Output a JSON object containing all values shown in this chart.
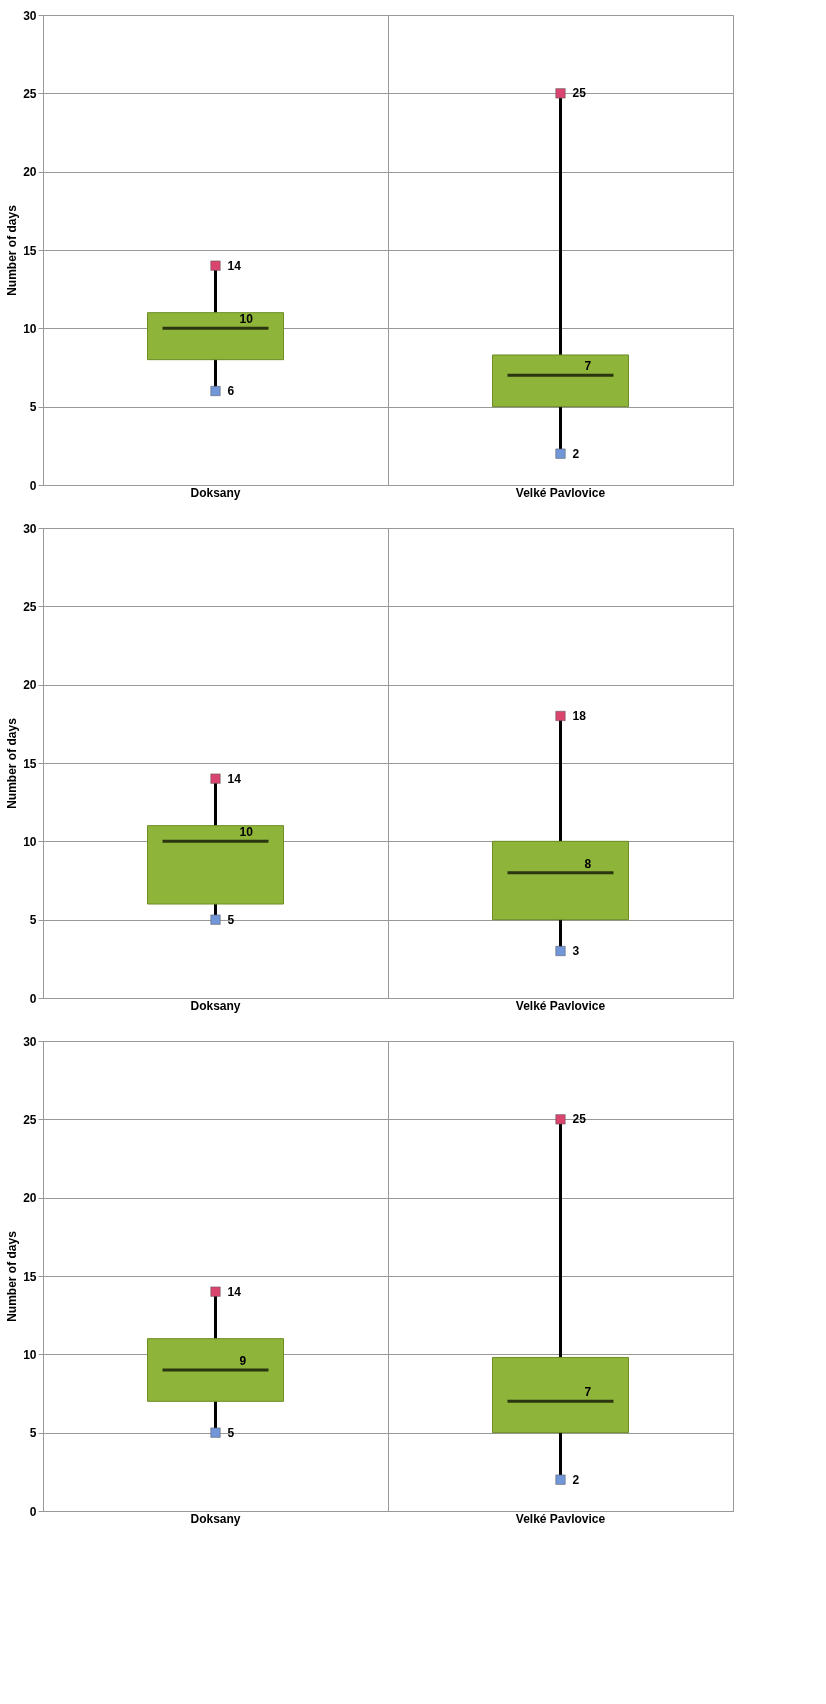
{
  "chart_data": [
    {
      "type": "box",
      "ylabel": "Number of days",
      "categories": [
        "Doksany",
        "Velké Pavlovice"
      ],
      "ylim": [
        0,
        30
      ],
      "yticks": [
        0,
        5,
        10,
        15,
        20,
        25,
        30
      ],
      "grid": true,
      "marker": "square",
      "series": [
        {
          "color": "#8fb43a",
          "boxes": [
            {
              "low": 6,
              "q1": 8,
              "median": 10,
              "q3": 11,
              "high": 14
            },
            {
              "low": 2,
              "q1": 5,
              "median": 7,
              "q3": 8.3,
              "high": 25
            }
          ]
        },
        {
          "type": "scatter",
          "color": "#d9456e",
          "x": [
            "Doksany",
            "Velké Pavlovice"
          ],
          "values": [
            14,
            25
          ]
        },
        {
          "type": "scatter",
          "color": "#7197d8",
          "x": [
            "Doksany",
            "Velké Pavlovice"
          ],
          "values": [
            6,
            2
          ]
        }
      ],
      "annotations": [
        {
          "text": "14",
          "x": "Doksany",
          "y": 14
        },
        {
          "text": "10",
          "x": "Doksany",
          "y": 10
        },
        {
          "text": "6",
          "x": "Doksany",
          "y": 6
        },
        {
          "text": "25",
          "x": "Velké Pavlovice",
          "y": 25
        },
        {
          "text": "7",
          "x": "Velké Pavlovice",
          "y": 7
        },
        {
          "text": "2",
          "x": "Velké Pavlovice",
          "y": 2
        }
      ]
    },
    {
      "type": "box",
      "ylabel": "Number of days",
      "categories": [
        "Doksany",
        "Velké Pavlovice"
      ],
      "ylim": [
        0,
        30
      ],
      "yticks": [
        0,
        5,
        10,
        15,
        20,
        25,
        30
      ],
      "grid": true,
      "marker": "square",
      "series": [
        {
          "color": "#8fb43a",
          "boxes": [
            {
              "low": 5,
              "q1": 6,
              "median": 10,
              "q3": 11,
              "high": 14
            },
            {
              "low": 3,
              "q1": 5,
              "median": 8,
              "q3": 10,
              "high": 18
            }
          ]
        },
        {
          "type": "scatter",
          "color": "#d9456e",
          "x": [
            "Doksany",
            "Velké Pavlovice"
          ],
          "values": [
            14,
            18
          ]
        },
        {
          "type": "scatter",
          "color": "#7197d8",
          "x": [
            "Doksany",
            "Velké Pavlovice"
          ],
          "values": [
            5,
            3
          ]
        }
      ],
      "annotations": [
        {
          "text": "14",
          "x": "Doksany",
          "y": 14
        },
        {
          "text": "10",
          "x": "Doksany",
          "y": 10
        },
        {
          "text": "5",
          "x": "Doksany",
          "y": 5
        },
        {
          "text": "18",
          "x": "Velké Pavlovice",
          "y": 18
        },
        {
          "text": "8",
          "x": "Velké Pavlovice",
          "y": 8
        },
        {
          "text": "3",
          "x": "Velké Pavlovice",
          "y": 3
        }
      ]
    },
    {
      "type": "box",
      "ylabel": "Number of days",
      "categories": [
        "Doksany",
        "Velké Pavlovice"
      ],
      "ylim": [
        0,
        30
      ],
      "yticks": [
        0,
        5,
        10,
        15,
        20,
        25,
        30
      ],
      "grid": true,
      "marker": "square",
      "series": [
        {
          "color": "#8fb43a",
          "boxes": [
            {
              "low": 5,
              "q1": 7,
              "median": 9,
              "q3": 11,
              "high": 14
            },
            {
              "low": 2,
              "q1": 5,
              "median": 7,
              "q3": 9.8,
              "high": 25
            }
          ]
        },
        {
          "type": "scatter",
          "color": "#d9456e",
          "x": [
            "Doksany",
            "Velké Pavlovice"
          ],
          "values": [
            14,
            25
          ]
        },
        {
          "type": "scatter",
          "color": "#7197d8",
          "x": [
            "Doksany",
            "Velké Pavlovice"
          ],
          "values": [
            5,
            2
          ]
        }
      ],
      "annotations": [
        {
          "text": "14",
          "x": "Doksany",
          "y": 14
        },
        {
          "text": "9",
          "x": "Doksany",
          "y": 9
        },
        {
          "text": "5",
          "x": "Doksany",
          "y": 5
        },
        {
          "text": "25",
          "x": "Velké Pavlovice",
          "y": 25
        },
        {
          "text": "7",
          "x": "Velké Pavlovice",
          "y": 7
        },
        {
          "text": "2",
          "x": "Velké Pavlovice",
          "y": 2
        }
      ]
    }
  ]
}
